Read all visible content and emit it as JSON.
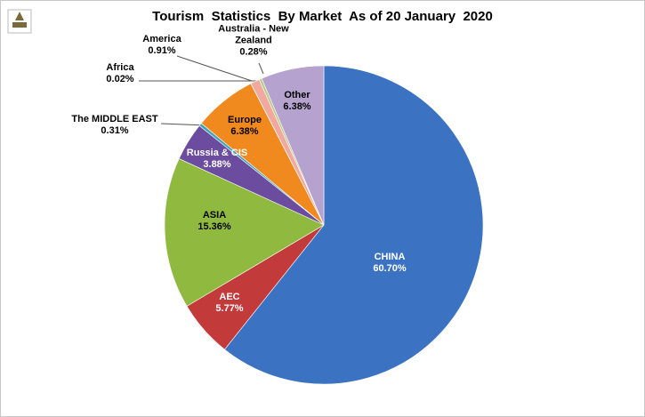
{
  "chart_data": {
    "type": "pie",
    "title": "Tourism  Statistics  By Market  As of 20 January  2020",
    "categories": [
      "CHINA",
      "AEC",
      "ASIA",
      "Russia  & CIS",
      "The MIDDLE  EAST",
      "Europe",
      "Africa",
      "America",
      "Australia - New Zealand",
      "Other"
    ],
    "values": [
      60.7,
      5.77,
      15.36,
      3.88,
      0.31,
      6.38,
      0.02,
      0.91,
      0.28,
      6.38
    ],
    "value_labels": [
      "60.70%",
      "5.77%",
      "15.36%",
      "3.88%",
      "0.31%",
      "6.38%",
      "0.02%",
      "0.91%",
      "0.28%",
      "6.38%"
    ],
    "colors": [
      "#3b73c2",
      "#c23a3a",
      "#8fba3f",
      "#6b4c9e",
      "#3ea3bb",
      "#f08a1f",
      "#8ea9d9",
      "#f1a89e",
      "#b9cd89",
      "#b6a2cf"
    ]
  }
}
